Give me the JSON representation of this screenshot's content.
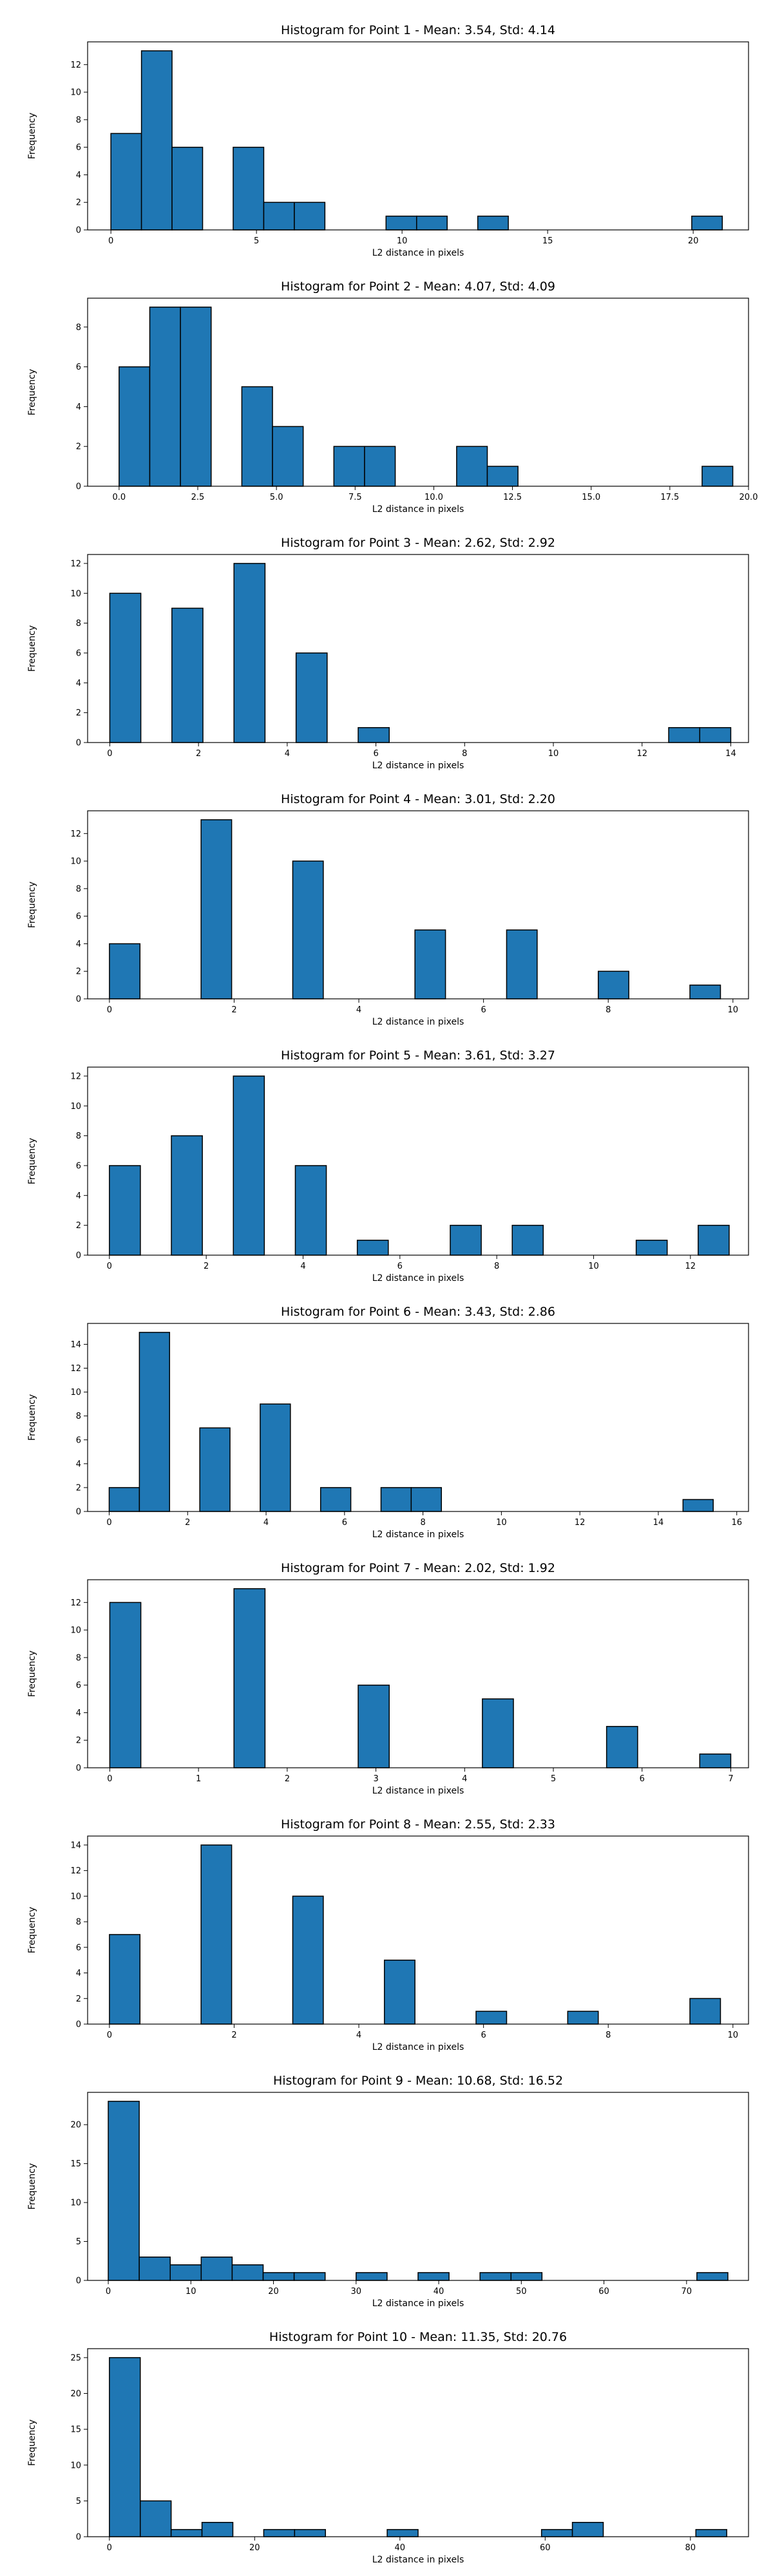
{
  "chart_data": [
    {
      "type": "bar",
      "title": "Histogram for Point 1 - Mean: 3.54, Std: 4.14",
      "xlabel": "L2 distance in pixels",
      "ylabel": "Frequency",
      "xlim": [
        -0.8,
        21.9
      ],
      "ylim": [
        0,
        13.65
      ],
      "xticks": [
        0,
        5,
        10,
        15,
        20
      ],
      "xtick_labels": [
        "0",
        "5",
        "10",
        "15",
        "20"
      ],
      "yticks": [
        0,
        2,
        4,
        6,
        8,
        10,
        12
      ],
      "bin_edges": [
        0,
        1.05,
        2.1,
        3.15,
        4.2,
        5.25,
        6.3,
        7.35,
        8.4,
        9.45,
        10.5,
        11.55,
        12.6,
        13.65,
        14.7,
        15.75,
        16.8,
        17.85,
        18.9,
        19.95,
        21.0
      ],
      "counts": [
        7,
        13,
        6,
        0,
        6,
        2,
        2,
        0,
        0,
        1,
        1,
        0,
        1,
        0,
        0,
        0,
        0,
        0,
        0,
        1
      ],
      "color": "#1f77b4",
      "edgecolor": "#000000"
    },
    {
      "type": "bar",
      "title": "Histogram for Point 2 - Mean: 4.07, Std: 4.09",
      "xlabel": "L2 distance in pixels",
      "ylabel": "Frequency",
      "xlim": [
        -1.0,
        20.0
      ],
      "ylim": [
        0,
        9.45
      ],
      "xticks": [
        0,
        2.5,
        5,
        7.5,
        10,
        12.5,
        15,
        17.5,
        20
      ],
      "xtick_labels": [
        "0.0",
        "2.5",
        "5.0",
        "7.5",
        "10.0",
        "12.5",
        "15.0",
        "17.5",
        "20.0"
      ],
      "yticks": [
        0,
        2,
        4,
        6,
        8
      ],
      "bin_edges": [
        0,
        0.975,
        1.95,
        2.925,
        3.9,
        4.875,
        5.85,
        6.825,
        7.8,
        8.775,
        9.75,
        10.725,
        11.7,
        12.675,
        13.65,
        14.625,
        15.6,
        16.575,
        17.55,
        18.525,
        19.5
      ],
      "counts": [
        6,
        9,
        9,
        0,
        5,
        3,
        0,
        2,
        2,
        0,
        0,
        2,
        1,
        0,
        0,
        0,
        0,
        0,
        0,
        1
      ],
      "color": "#1f77b4",
      "edgecolor": "#000000"
    },
    {
      "type": "bar",
      "title": "Histogram for Point 3 - Mean: 2.62, Std: 2.92",
      "xlabel": "L2 distance in pixels",
      "ylabel": "Frequency",
      "xlim": [
        -0.5,
        14.4
      ],
      "ylim": [
        0,
        12.6
      ],
      "xticks": [
        0,
        2,
        4,
        6,
        8,
        10,
        12,
        14
      ],
      "xtick_labels": [
        "0",
        "2",
        "4",
        "6",
        "8",
        "10",
        "12",
        "14"
      ],
      "yticks": [
        0,
        2,
        4,
        6,
        8,
        10,
        12
      ],
      "bin_edges": [
        0,
        0.7,
        1.4,
        2.1,
        2.8,
        3.5,
        4.2,
        4.9,
        5.6,
        6.3,
        7.0,
        7.7,
        8.4,
        9.1,
        9.8,
        10.5,
        11.2,
        11.9,
        12.6,
        13.3,
        14.0
      ],
      "counts": [
        10,
        0,
        9,
        0,
        12,
        0,
        6,
        0,
        1,
        0,
        0,
        0,
        0,
        0,
        0,
        0,
        0,
        0,
        1,
        1
      ],
      "color": "#1f77b4",
      "edgecolor": "#000000"
    },
    {
      "type": "bar",
      "title": "Histogram for Point 4 - Mean: 3.01, Std: 2.20",
      "xlabel": "L2 distance in pixels",
      "ylabel": "Frequency",
      "xlim": [
        -0.35,
        10.25
      ],
      "ylim": [
        0,
        13.65
      ],
      "xticks": [
        0,
        2,
        4,
        6,
        8,
        10
      ],
      "xtick_labels": [
        "0",
        "2",
        "4",
        "6",
        "8",
        "10"
      ],
      "yticks": [
        0,
        2,
        4,
        6,
        8,
        10,
        12
      ],
      "bin_edges": [
        0,
        0.49,
        0.98,
        1.47,
        1.96,
        2.45,
        2.94,
        3.43,
        3.92,
        4.41,
        4.9,
        5.39,
        5.88,
        6.37,
        6.86,
        7.35,
        7.84,
        8.33,
        8.82,
        9.31,
        9.8
      ],
      "counts": [
        4,
        0,
        0,
        13,
        0,
        0,
        10,
        0,
        0,
        0,
        5,
        0,
        0,
        5,
        0,
        0,
        2,
        0,
        0,
        1
      ],
      "color": "#1f77b4",
      "edgecolor": "#000000"
    },
    {
      "type": "bar",
      "title": "Histogram for Point 5 - Mean: 3.61, Std: 3.27",
      "xlabel": "L2 distance in pixels",
      "ylabel": "Frequency",
      "xlim": [
        -0.45,
        13.2
      ],
      "ylim": [
        0,
        12.6
      ],
      "xticks": [
        0,
        2,
        4,
        6,
        8,
        10,
        12
      ],
      "xtick_labels": [
        "0",
        "2",
        "4",
        "6",
        "8",
        "10",
        "12"
      ],
      "yticks": [
        0,
        2,
        4,
        6,
        8,
        10,
        12
      ],
      "bin_edges": [
        0,
        0.64,
        1.28,
        1.92,
        2.56,
        3.2,
        3.84,
        4.48,
        5.12,
        5.76,
        6.4,
        7.04,
        7.68,
        8.32,
        8.96,
        9.6,
        10.24,
        10.88,
        11.52,
        12.16,
        12.8
      ],
      "counts": [
        6,
        0,
        8,
        0,
        12,
        0,
        6,
        0,
        1,
        0,
        0,
        2,
        0,
        2,
        0,
        0,
        0,
        1,
        0,
        2
      ],
      "color": "#1f77b4",
      "edgecolor": "#000000"
    },
    {
      "type": "bar",
      "title": "Histogram for Point 6 - Mean: 3.43, Std: 2.86",
      "xlabel": "L2 distance in pixels",
      "ylabel": "Frequency",
      "xlim": [
        -0.55,
        16.3
      ],
      "ylim": [
        0,
        15.75
      ],
      "xticks": [
        0,
        2,
        4,
        6,
        8,
        10,
        12,
        14,
        16
      ],
      "xtick_labels": [
        "0",
        "2",
        "4",
        "6",
        "8",
        "10",
        "12",
        "14",
        "16"
      ],
      "yticks": [
        0,
        2,
        4,
        6,
        8,
        10,
        12,
        14
      ],
      "bin_edges": [
        0,
        0.77,
        1.54,
        2.31,
        3.08,
        3.85,
        4.62,
        5.39,
        6.16,
        6.93,
        7.7,
        8.47,
        9.24,
        10.01,
        10.78,
        11.55,
        12.32,
        13.09,
        13.86,
        14.63,
        15.4
      ],
      "counts": [
        2,
        15,
        0,
        7,
        0,
        9,
        0,
        2,
        0,
        2,
        2,
        0,
        0,
        0,
        0,
        0,
        0,
        0,
        0,
        1
      ],
      "color": "#1f77b4",
      "edgecolor": "#000000"
    },
    {
      "type": "bar",
      "title": "Histogram for Point 7 - Mean: 2.02, Std: 1.92",
      "xlabel": "L2 distance in pixels",
      "ylabel": "Frequency",
      "xlim": [
        -0.25,
        7.2
      ],
      "ylim": [
        0,
        13.65
      ],
      "xticks": [
        0,
        1,
        2,
        3,
        4,
        5,
        6,
        7
      ],
      "xtick_labels": [
        "0",
        "1",
        "2",
        "3",
        "4",
        "5",
        "6",
        "7"
      ],
      "yticks": [
        0,
        2,
        4,
        6,
        8,
        10,
        12
      ],
      "bin_edges": [
        0,
        0.35,
        0.7,
        1.05,
        1.4,
        1.75,
        2.1,
        2.45,
        2.8,
        3.15,
        3.5,
        3.85,
        4.2,
        4.55,
        4.9,
        5.25,
        5.6,
        5.95,
        6.3,
        6.65,
        7.0
      ],
      "counts": [
        12,
        0,
        0,
        0,
        13,
        0,
        0,
        0,
        6,
        0,
        0,
        0,
        5,
        0,
        0,
        0,
        3,
        0,
        0,
        1
      ],
      "color": "#1f77b4",
      "edgecolor": "#000000"
    },
    {
      "type": "bar",
      "title": "Histogram for Point 8 - Mean: 2.55, Std: 2.33",
      "xlabel": "L2 distance in pixels",
      "ylabel": "Frequency",
      "xlim": [
        -0.35,
        10.25
      ],
      "ylim": [
        0,
        14.7
      ],
      "xticks": [
        0,
        2,
        4,
        6,
        8,
        10
      ],
      "xtick_labels": [
        "0",
        "2",
        "4",
        "6",
        "8",
        "10"
      ],
      "yticks": [
        0,
        2,
        4,
        6,
        8,
        10,
        12,
        14
      ],
      "bin_edges": [
        0,
        0.49,
        0.98,
        1.47,
        1.96,
        2.45,
        2.94,
        3.43,
        3.92,
        4.41,
        4.9,
        5.39,
        5.88,
        6.37,
        6.86,
        7.35,
        7.84,
        8.33,
        8.82,
        9.31,
        9.8
      ],
      "counts": [
        7,
        0,
        0,
        14,
        0,
        0,
        10,
        0,
        0,
        5,
        0,
        0,
        1,
        0,
        0,
        1,
        0,
        0,
        0,
        2
      ],
      "color": "#1f77b4",
      "edgecolor": "#000000"
    },
    {
      "type": "bar",
      "title": "Histogram for Point 9 - Mean: 10.68, Std: 16.52",
      "xlabel": "L2 distance in pixels",
      "ylabel": "Frequency",
      "xlim": [
        -2.5,
        77.5
      ],
      "ylim": [
        0,
        24.15
      ],
      "xticks": [
        0,
        10,
        20,
        30,
        40,
        50,
        60,
        70
      ],
      "xtick_labels": [
        "0",
        "10",
        "20",
        "30",
        "40",
        "50",
        "60",
        "70"
      ],
      "yticks": [
        0,
        5,
        10,
        15,
        20
      ],
      "bin_edges": [
        0,
        3.75,
        7.5,
        11.25,
        15.0,
        18.75,
        22.5,
        26.25,
        30.0,
        33.75,
        37.5,
        41.25,
        45.0,
        48.75,
        52.5,
        56.25,
        60.0,
        63.75,
        67.5,
        71.25,
        75.0
      ],
      "counts": [
        23,
        3,
        2,
        3,
        2,
        1,
        1,
        0,
        1,
        0,
        1,
        0,
        1,
        1,
        0,
        0,
        0,
        0,
        0,
        1
      ],
      "color": "#1f77b4",
      "edgecolor": "#000000"
    },
    {
      "type": "bar",
      "title": "Histogram for Point 10 - Mean: 11.35, Std: 20.76",
      "xlabel": "L2 distance in pixels",
      "ylabel": "Frequency",
      "xlim": [
        -3.0,
        88.0
      ],
      "ylim": [
        0,
        26.25
      ],
      "xticks": [
        0,
        20,
        40,
        60,
        80
      ],
      "xtick_labels": [
        "0",
        "20",
        "40",
        "60",
        "80"
      ],
      "yticks": [
        0,
        5,
        10,
        15,
        20,
        25
      ],
      "bin_edges": [
        0,
        4.25,
        8.5,
        12.75,
        17.0,
        21.25,
        25.5,
        29.75,
        34.0,
        38.25,
        42.5,
        46.75,
        51.0,
        55.25,
        59.5,
        63.75,
        68.0,
        72.25,
        76.5,
        80.75,
        85.0
      ],
      "counts": [
        25,
        5,
        1,
        2,
        0,
        1,
        1,
        0,
        0,
        1,
        0,
        0,
        0,
        0,
        1,
        2,
        0,
        0,
        0,
        1
      ],
      "color": "#1f77b4",
      "edgecolor": "#000000"
    }
  ]
}
